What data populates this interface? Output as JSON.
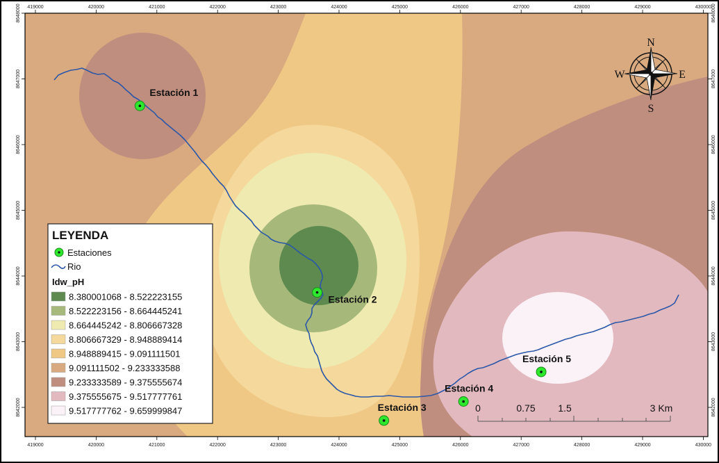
{
  "legend": {
    "title": "LEYENDA",
    "stations_label": "Estaciones",
    "river_label": "Rio",
    "layer_title": "Idw_pH",
    "classes": [
      {
        "label": "8.380001068 - 8.522223155",
        "color": "#5e8a4f"
      },
      {
        "label": "8.522223156 - 8.664445241",
        "color": "#a6b97a"
      },
      {
        "label": "8.664445242 - 8.806667328",
        "color": "#eeeab0"
      },
      {
        "label": "8.806667329 - 8.948889414",
        "color": "#f5d89b"
      },
      {
        "label": "8.948889415 - 9.091111501",
        "color": "#f0c886"
      },
      {
        "label": "9.091111502 - 9.233333588",
        "color": "#d9aa80"
      },
      {
        "label": "9.233333589 - 9.375555674",
        "color": "#c08e7e"
      },
      {
        "label": "9.375555675 - 9.517777761",
        "color": "#e3b9c0"
      },
      {
        "label": "9.517777762 - 9.659999847",
        "color": "#faf2f6"
      }
    ]
  },
  "stations": [
    {
      "name": "Estación 1",
      "x": 420720,
      "y": 8646590
    },
    {
      "name": "Estación 2",
      "x": 423640,
      "y": 8643750
    },
    {
      "name": "Estación 3",
      "x": 424740,
      "y": 8641800
    },
    {
      "name": "Estación 4",
      "x": 426050,
      "y": 8642090
    },
    {
      "name": "Estación 5",
      "x": 427330,
      "y": 8642540
    }
  ],
  "axes": {
    "x_ticks": [
      "419000",
      "420000",
      "421000",
      "422000",
      "423000",
      "424000",
      "425000",
      "426000",
      "427000",
      "428000",
      "429000",
      "430000"
    ],
    "y_ticks": [
      "8648000",
      "8647000",
      "8646000",
      "8645000",
      "8644000",
      "8643000",
      "8642000"
    ]
  },
  "scale_bar": {
    "labels": [
      "0",
      "0.75",
      "1.5",
      "3 Km"
    ]
  },
  "compass": {
    "n": "N",
    "s": "S",
    "e": "E",
    "w": "W"
  },
  "colors": {
    "river": "#2a57a8",
    "station_fill": "#2ee82e",
    "station_stroke": "#1a8a1a",
    "frame": "#000000"
  }
}
